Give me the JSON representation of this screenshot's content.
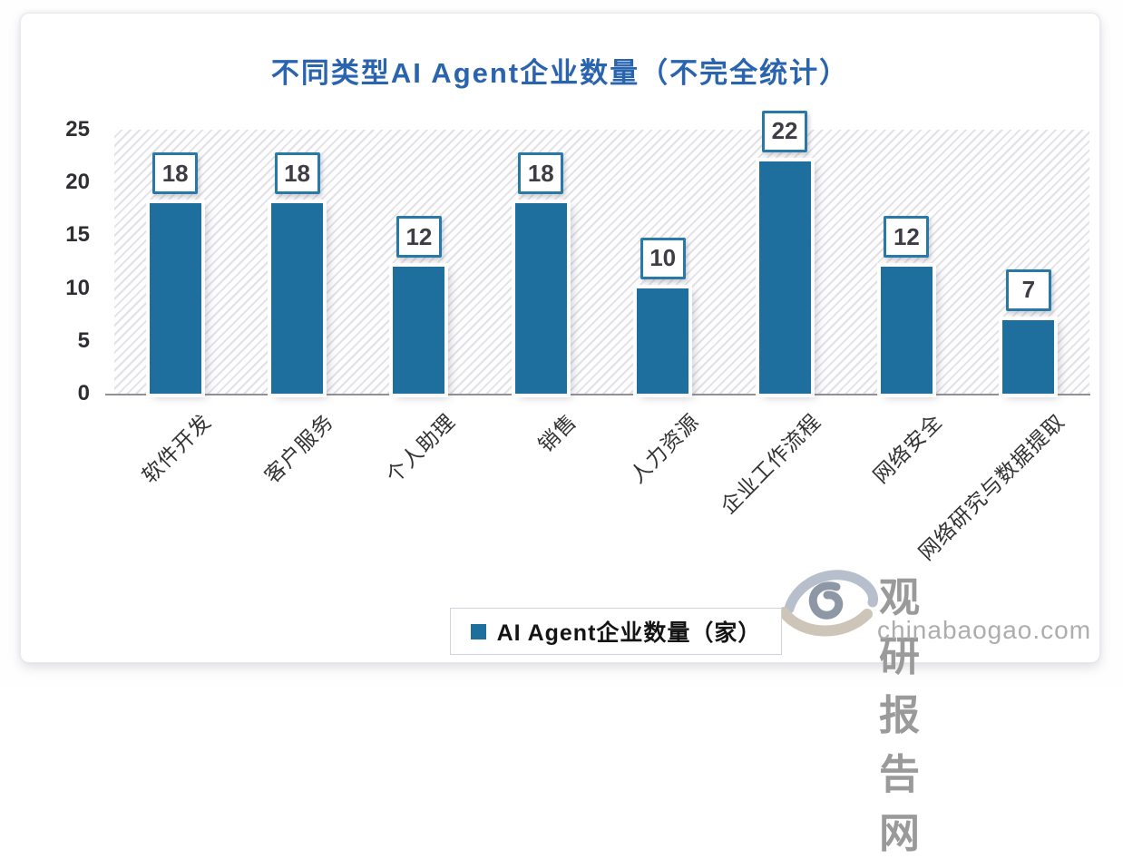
{
  "title": "不同类型AI Agent企业数量（不完全统计）",
  "legend": {
    "label": "AI Agent企业数量（家）"
  },
  "watermark": {
    "name": "观研报告网",
    "domain": "chinabaogao.com"
  },
  "colors": {
    "bar": "#1F6F9E",
    "title": "#2A64AE",
    "value_box_border": "#2878A8",
    "axis_line": "#909095",
    "watermark_text": "#9a9a9a"
  },
  "chart_data": {
    "type": "bar",
    "title": "不同类型AI Agent企业数量（不完全统计）",
    "categories": [
      "软件开发",
      "客户服务",
      "个人助理",
      "销售",
      "人力资源",
      "企业工作流程",
      "网络安全",
      "网络研究与数据提取"
    ],
    "values": [
      18,
      18,
      12,
      18,
      10,
      22,
      12,
      7
    ],
    "series_name": "AI Agent企业数量（家）",
    "xlabel": "",
    "ylabel": "",
    "ylim": [
      0,
      25
    ],
    "yticks": [
      0,
      5,
      10,
      15,
      20,
      25
    ],
    "grid": false,
    "plot_background": "diagonal-hatch",
    "legend_position": "bottom-center",
    "data_labels": "boxed-above-bars"
  }
}
